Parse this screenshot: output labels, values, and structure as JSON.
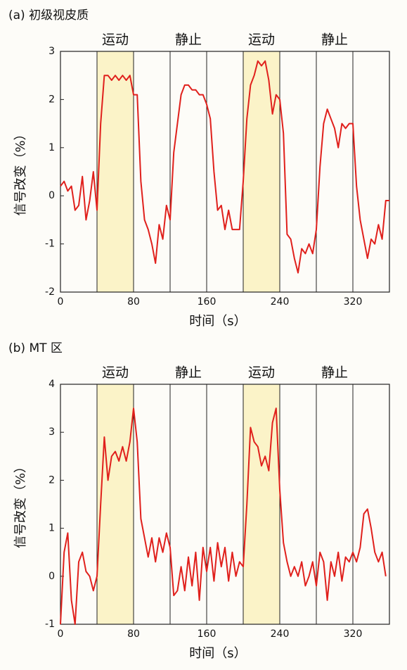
{
  "chart_data": [
    {
      "type": "line",
      "title": "(a) 初级视皮质",
      "x_label": "时间（s）",
      "y_label": "信号改变（%）",
      "xlim": [
        0,
        360
      ],
      "ylim": [
        -2,
        3
      ],
      "xticks": [
        0,
        80,
        160,
        240,
        320
      ],
      "yticks": [
        -2,
        -1,
        0,
        1,
        2,
        3
      ],
      "vlines": [
        40,
        80,
        120,
        160,
        200,
        240,
        280,
        320
      ],
      "bands": [
        {
          "label": "运动",
          "x0": 40,
          "x1": 80,
          "shaded": true
        },
        {
          "label": "静止",
          "x0": 120,
          "x1": 160,
          "shaded": false
        },
        {
          "label": "运动",
          "x0": 200,
          "x1": 240,
          "shaded": true
        },
        {
          "label": "静止",
          "x0": 280,
          "x1": 320,
          "shaded": false
        }
      ],
      "shade_color": "#fbf3c8",
      "x": [
        0,
        4,
        8,
        12,
        16,
        20,
        24,
        28,
        32,
        36,
        40,
        44,
        48,
        52,
        56,
        60,
        64,
        68,
        72,
        76,
        80,
        84,
        88,
        92,
        96,
        100,
        104,
        108,
        112,
        116,
        120,
        124,
        128,
        132,
        136,
        140,
        144,
        148,
        152,
        156,
        160,
        164,
        168,
        172,
        176,
        180,
        184,
        188,
        192,
        196,
        200,
        204,
        208,
        212,
        216,
        220,
        224,
        228,
        232,
        236,
        240,
        244,
        248,
        252,
        256,
        260,
        264,
        268,
        272,
        276,
        280,
        284,
        288,
        292,
        296,
        300,
        304,
        308,
        312,
        316,
        320,
        324,
        328,
        332,
        336,
        340,
        344,
        348,
        352,
        356,
        360
      ],
      "series": [
        {
          "color": "#e0201c",
          "values": [
            0.2,
            0.3,
            0.1,
            0.2,
            -0.3,
            -0.2,
            0.4,
            -0.5,
            -0.1,
            0.5,
            -0.3,
            1.5,
            2.5,
            2.5,
            2.4,
            2.5,
            2.4,
            2.5,
            2.4,
            2.5,
            2.1,
            2.1,
            0.3,
            -0.5,
            -0.7,
            -1.0,
            -1.4,
            -0.6,
            -0.9,
            -0.2,
            -0.5,
            0.9,
            1.5,
            2.1,
            2.3,
            2.3,
            2.2,
            2.2,
            2.1,
            2.1,
            1.9,
            1.6,
            0.5,
            -0.3,
            -0.2,
            -0.7,
            -0.3,
            -0.7,
            -0.7,
            -0.7,
            0.3,
            1.6,
            2.3,
            2.5,
            2.8,
            2.7,
            2.8,
            2.4,
            1.7,
            2.1,
            2.0,
            1.3,
            -0.8,
            -0.9,
            -1.3,
            -1.6,
            -1.1,
            -1.2,
            -1.0,
            -1.2,
            -0.7,
            0.6,
            1.5,
            1.8,
            1.6,
            1.4,
            1.0,
            1.5,
            1.4,
            1.5,
            1.5,
            0.2,
            -0.5,
            -0.9,
            -1.3,
            -0.9,
            -1.0,
            -0.6,
            -0.9,
            -0.1,
            -0.1
          ]
        }
      ]
    },
    {
      "type": "line",
      "title": "(b) MT 区",
      "x_label": "时间（s）",
      "y_label": "信号改变（%）",
      "xlim": [
        0,
        360
      ],
      "ylim": [
        -1,
        4
      ],
      "xticks": [
        0,
        80,
        160,
        240,
        320
      ],
      "yticks": [
        -1,
        0,
        1,
        2,
        3,
        4
      ],
      "vlines": [
        40,
        80,
        120,
        160,
        200,
        240,
        280,
        320
      ],
      "bands": [
        {
          "label": "运动",
          "x0": 40,
          "x1": 80,
          "shaded": true
        },
        {
          "label": "静止",
          "x0": 120,
          "x1": 160,
          "shaded": false
        },
        {
          "label": "运动",
          "x0": 200,
          "x1": 240,
          "shaded": true
        },
        {
          "label": "静止",
          "x0": 280,
          "x1": 320,
          "shaded": false
        }
      ],
      "shade_color": "#fbf3c8",
      "x": [
        0,
        4,
        8,
        12,
        16,
        20,
        24,
        28,
        32,
        36,
        40,
        44,
        48,
        52,
        56,
        60,
        64,
        68,
        72,
        76,
        80,
        84,
        88,
        92,
        96,
        100,
        104,
        108,
        112,
        116,
        120,
        124,
        128,
        132,
        136,
        140,
        144,
        148,
        152,
        156,
        160,
        164,
        168,
        172,
        176,
        180,
        184,
        188,
        192,
        196,
        200,
        204,
        208,
        212,
        216,
        220,
        224,
        228,
        232,
        236,
        240,
        244,
        248,
        252,
        256,
        260,
        264,
        268,
        272,
        276,
        280,
        284,
        288,
        292,
        296,
        300,
        304,
        308,
        312,
        316,
        320,
        324,
        328,
        332,
        336,
        340,
        344,
        348,
        352,
        356
      ],
      "series": [
        {
          "color": "#e0201c",
          "values": [
            -1.0,
            0.5,
            0.9,
            -0.5,
            -1.0,
            0.3,
            0.5,
            0.1,
            0.0,
            -0.3,
            0.0,
            1.5,
            2.9,
            2.0,
            2.5,
            2.6,
            2.4,
            2.7,
            2.4,
            2.8,
            3.5,
            2.8,
            1.2,
            0.8,
            0.4,
            0.8,
            0.3,
            0.8,
            0.5,
            0.9,
            0.6,
            -0.4,
            -0.3,
            0.2,
            -0.3,
            0.4,
            -0.2,
            0.5,
            -0.5,
            0.6,
            0.1,
            0.6,
            -0.1,
            0.7,
            0.2,
            0.6,
            -0.1,
            0.5,
            0.0,
            0.3,
            0.2,
            1.5,
            3.1,
            2.8,
            2.7,
            2.3,
            2.5,
            2.2,
            3.2,
            3.5,
            1.8,
            0.7,
            0.3,
            0.0,
            0.2,
            0.0,
            0.3,
            -0.2,
            0.0,
            0.3,
            -0.2,
            0.5,
            0.3,
            -0.5,
            0.3,
            0.0,
            0.5,
            -0.1,
            0.4,
            0.3,
            0.5,
            0.3,
            0.6,
            1.3,
            1.4,
            1.0,
            0.5,
            0.3,
            0.5,
            0.0
          ]
        }
      ]
    }
  ]
}
